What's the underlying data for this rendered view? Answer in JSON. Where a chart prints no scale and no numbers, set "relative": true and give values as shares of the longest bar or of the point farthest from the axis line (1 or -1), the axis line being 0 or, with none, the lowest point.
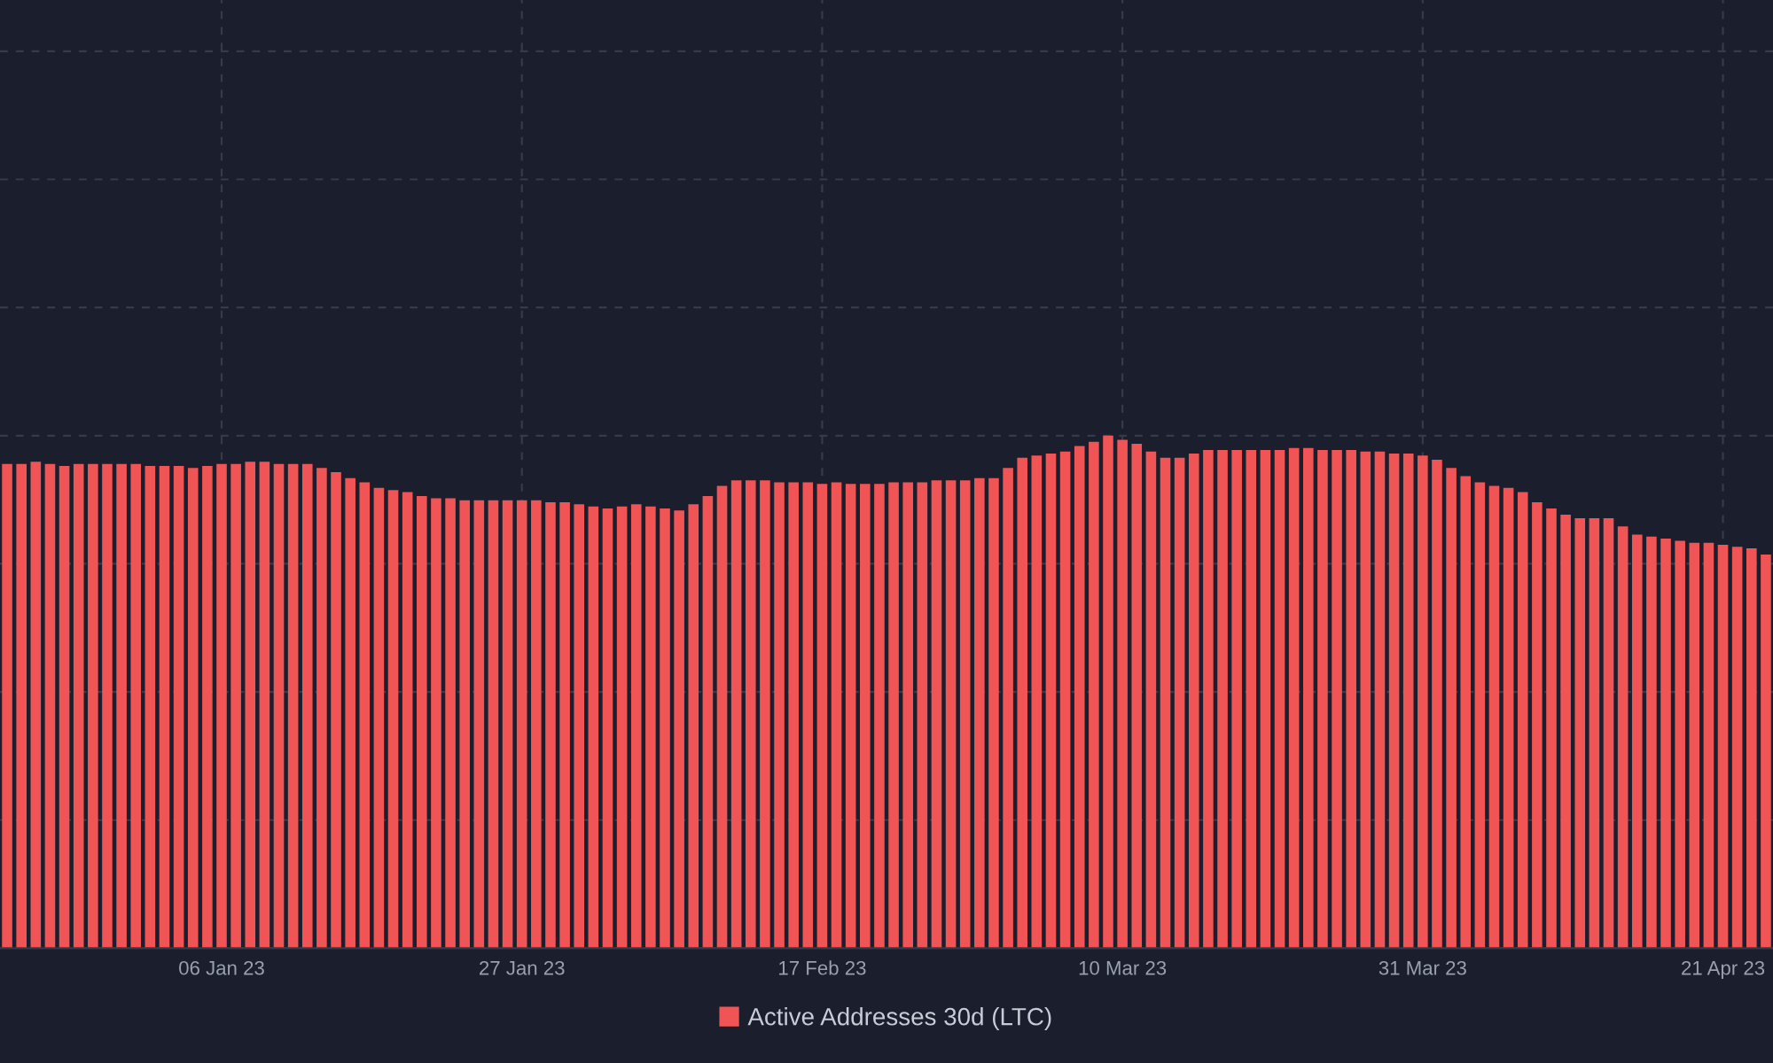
{
  "chart_data": {
    "type": "bar",
    "relative": true,
    "x": [
      "2022-12-22",
      "2022-12-23",
      "2022-12-24",
      "2022-12-25",
      "2022-12-26",
      "2022-12-27",
      "2022-12-28",
      "2022-12-29",
      "2022-12-30",
      "2022-12-31",
      "2023-01-01",
      "2023-01-02",
      "2023-01-03",
      "2023-01-04",
      "2023-01-05",
      "2023-01-06",
      "2023-01-07",
      "2023-01-08",
      "2023-01-09",
      "2023-01-10",
      "2023-01-11",
      "2023-01-12",
      "2023-01-13",
      "2023-01-14",
      "2023-01-15",
      "2023-01-16",
      "2023-01-17",
      "2023-01-18",
      "2023-01-19",
      "2023-01-20",
      "2023-01-21",
      "2023-01-22",
      "2023-01-23",
      "2023-01-24",
      "2023-01-25",
      "2023-01-26",
      "2023-01-27",
      "2023-01-28",
      "2023-01-29",
      "2023-01-30",
      "2023-01-31",
      "2023-02-01",
      "2023-02-02",
      "2023-02-03",
      "2023-02-04",
      "2023-02-05",
      "2023-02-06",
      "2023-02-07",
      "2023-02-08",
      "2023-02-09",
      "2023-02-10",
      "2023-02-11",
      "2023-02-12",
      "2023-02-13",
      "2023-02-14",
      "2023-02-15",
      "2023-02-16",
      "2023-02-17",
      "2023-02-18",
      "2023-02-19",
      "2023-02-20",
      "2023-02-21",
      "2023-02-22",
      "2023-02-23",
      "2023-02-24",
      "2023-02-25",
      "2023-02-26",
      "2023-02-27",
      "2023-02-28",
      "2023-03-01",
      "2023-03-02",
      "2023-03-03",
      "2023-03-04",
      "2023-03-05",
      "2023-03-06",
      "2023-03-07",
      "2023-03-08",
      "2023-03-09",
      "2023-03-10",
      "2023-03-11",
      "2023-03-12",
      "2023-03-13",
      "2023-03-14",
      "2023-03-15",
      "2023-03-16",
      "2023-03-17",
      "2023-03-18",
      "2023-03-19",
      "2023-03-20",
      "2023-03-21",
      "2023-03-22",
      "2023-03-23",
      "2023-03-24",
      "2023-03-25",
      "2023-03-26",
      "2023-03-27",
      "2023-03-28",
      "2023-03-29",
      "2023-03-30",
      "2023-03-31",
      "2023-04-01",
      "2023-04-02",
      "2023-04-03",
      "2023-04-04",
      "2023-04-05",
      "2023-04-06",
      "2023-04-07",
      "2023-04-08",
      "2023-04-09",
      "2023-04-10",
      "2023-04-11",
      "2023-04-12",
      "2023-04-13",
      "2023-04-14",
      "2023-04-15",
      "2023-04-16",
      "2023-04-17",
      "2023-04-18",
      "2023-04-19",
      "2023-04-20",
      "2023-04-21",
      "2023-04-22",
      "2023-04-23",
      "2023-04-24"
    ],
    "series": [
      {
        "name": "Active Addresses 30d (LTC)",
        "color": "#f05454",
        "values": [
          0.945,
          0.945,
          0.949,
          0.945,
          0.941,
          0.945,
          0.945,
          0.945,
          0.945,
          0.945,
          0.941,
          0.941,
          0.941,
          0.937,
          0.941,
          0.945,
          0.945,
          0.949,
          0.949,
          0.945,
          0.945,
          0.945,
          0.937,
          0.929,
          0.917,
          0.909,
          0.898,
          0.894,
          0.89,
          0.882,
          0.878,
          0.878,
          0.874,
          0.874,
          0.874,
          0.874,
          0.874,
          0.874,
          0.87,
          0.87,
          0.866,
          0.862,
          0.858,
          0.862,
          0.866,
          0.862,
          0.858,
          0.854,
          0.866,
          0.882,
          0.902,
          0.913,
          0.913,
          0.913,
          0.909,
          0.909,
          0.909,
          0.906,
          0.909,
          0.906,
          0.906,
          0.906,
          0.909,
          0.909,
          0.909,
          0.913,
          0.913,
          0.913,
          0.917,
          0.917,
          0.937,
          0.957,
          0.961,
          0.965,
          0.969,
          0.98,
          0.988,
          1.0,
          0.992,
          0.984,
          0.969,
          0.957,
          0.957,
          0.965,
          0.972,
          0.972,
          0.972,
          0.972,
          0.972,
          0.972,
          0.976,
          0.976,
          0.972,
          0.972,
          0.972,
          0.969,
          0.969,
          0.965,
          0.965,
          0.961,
          0.953,
          0.937,
          0.921,
          0.909,
          0.902,
          0.898,
          0.89,
          0.87,
          0.858,
          0.846,
          0.839,
          0.839,
          0.839,
          0.823,
          0.807,
          0.803,
          0.799,
          0.795,
          0.791,
          0.791,
          0.787,
          0.783,
          0.78,
          0.768
        ]
      }
    ],
    "xlim": [
      "2022-12-21T12:00",
      "2023-04-24T12:00"
    ],
    "xticks": [
      {
        "value": "2023-01-06",
        "label": "06 Jan 23"
      },
      {
        "value": "2023-01-27",
        "label": "27 Jan 23"
      },
      {
        "value": "2023-02-17",
        "label": "17 Feb 23"
      },
      {
        "value": "2023-03-10",
        "label": "10 Mar 23"
      },
      {
        "value": "2023-03-31",
        "label": "31 Mar 23"
      },
      {
        "value": "2023-04-21",
        "label": "21 Apr 23"
      }
    ],
    "grid": true,
    "legend": "bottom"
  }
}
